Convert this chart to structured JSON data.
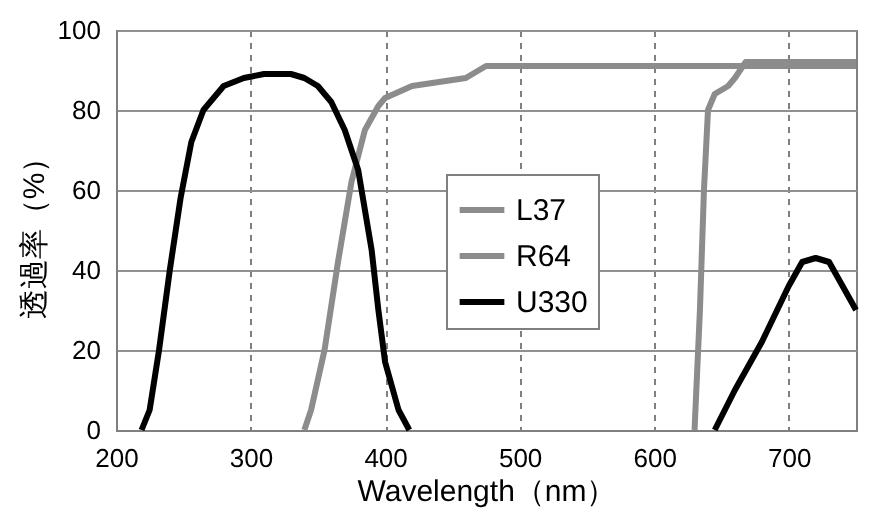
{
  "chart_data": {
    "type": "line",
    "xlabel": "Wavelength（nm）",
    "ylabel": "透過率（%）",
    "xlim": [
      200,
      750
    ],
    "xticks": [
      200,
      300,
      400,
      500,
      600,
      700
    ],
    "ylim": [
      0,
      100
    ],
    "yticks": [
      0,
      20,
      40,
      60,
      80,
      100
    ],
    "grid": true,
    "legend": "right",
    "marker": "none",
    "line_style": "solid",
    "series": [
      {
        "name": "L37",
        "color": "#8c8c8c",
        "x": [
          340,
          345,
          355,
          365,
          375,
          385,
          395,
          400,
          420,
          440,
          460,
          475,
          750
        ],
        "values": [
          0,
          5,
          20,
          42,
          62,
          75,
          81,
          83,
          86,
          87,
          88,
          91,
          91
        ]
      },
      {
        "name": "R64",
        "color": "#8c8c8c",
        "x": [
          630,
          634,
          637,
          640,
          645,
          655,
          660,
          668,
          750
        ],
        "values": [
          0,
          30,
          60,
          80,
          84,
          86,
          88,
          92,
          92
        ]
      },
      {
        "name": "U330",
        "color": "#000000",
        "x": [
          219,
          225,
          232,
          240,
          248,
          256,
          265,
          280,
          295,
          310,
          330,
          340,
          350,
          360,
          370,
          380,
          390,
          395,
          400,
          410,
          418,
          530,
          645,
          660,
          680,
          700,
          710,
          720,
          730,
          740,
          750
        ],
        "values": [
          0,
          5,
          20,
          40,
          58,
          72,
          80,
          86,
          88,
          89,
          89,
          88,
          86,
          82,
          75,
          65,
          45,
          30,
          17,
          5,
          0,
          null,
          0,
          10,
          22,
          36,
          42,
          43,
          42,
          36,
          30
        ]
      }
    ]
  }
}
